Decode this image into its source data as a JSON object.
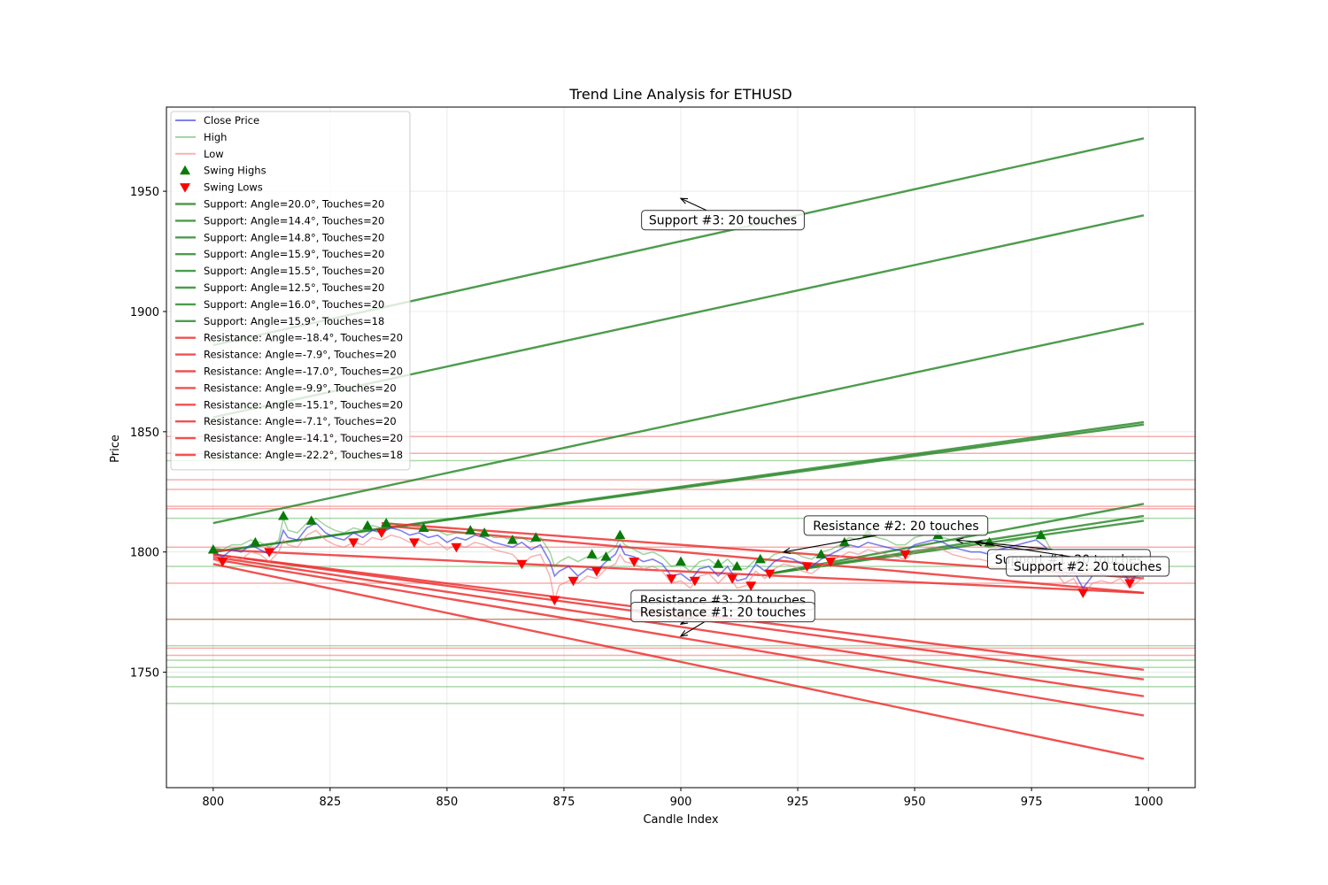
{
  "chart_data": {
    "type": "line",
    "title": "Trend Line Analysis for ETHUSD",
    "xlabel": "Candle Index",
    "ylabel": "Price",
    "xlim": [
      790,
      1010
    ],
    "ylim": [
      1702,
      1985
    ],
    "xticks": [
      800,
      825,
      850,
      875,
      900,
      925,
      950,
      975,
      1000
    ],
    "yticks": [
      1750,
      1800,
      1850,
      1900,
      1950
    ],
    "grid": true,
    "legend_position": "upper-left",
    "colors": {
      "close": "#3b3be0",
      "high": "#2ca02c",
      "low": "#f08080",
      "support": "#2e8b2e",
      "resistance": "#ee3333",
      "swing_high": "#0a7a0a",
      "swing_low": "#ff0000"
    },
    "series": [
      {
        "name": "Close Price",
        "x": [
          800,
          802,
          804,
          806,
          808,
          810,
          812,
          814,
          815,
          816,
          818,
          820,
          822,
          824,
          826,
          828,
          830,
          832,
          834,
          836,
          838,
          840,
          842,
          844,
          846,
          848,
          850,
          852,
          854,
          856,
          858,
          860,
          862,
          864,
          866,
          868,
          870,
          872,
          873,
          874,
          876,
          878,
          880,
          882,
          884,
          886,
          887,
          888,
          890,
          892,
          894,
          896,
          898,
          900,
          902,
          904,
          906,
          908,
          910,
          912,
          914,
          916,
          918,
          920,
          922,
          924,
          926,
          928,
          930,
          932,
          934,
          936,
          938,
          940,
          942,
          944,
          946,
          948,
          950,
          952,
          954,
          956,
          958,
          960,
          962,
          964,
          966,
          968,
          970,
          972,
          974,
          976,
          978,
          980,
          982,
          984,
          986,
          988,
          990,
          992,
          994,
          996,
          998,
          999
        ],
        "values": [
          1800,
          1798,
          1801,
          1800,
          1803,
          1801,
          1799,
          1803,
          1809,
          1806,
          1805,
          1810,
          1812,
          1808,
          1806,
          1805,
          1808,
          1806,
          1809,
          1808,
          1810,
          1809,
          1807,
          1808,
          1806,
          1807,
          1804,
          1806,
          1805,
          1807,
          1806,
          1804,
          1803,
          1802,
          1804,
          1801,
          1803,
          1796,
          1790,
          1792,
          1794,
          1790,
          1793,
          1792,
          1796,
          1799,
          1803,
          1799,
          1798,
          1796,
          1797,
          1795,
          1790,
          1791,
          1788,
          1793,
          1794,
          1790,
          1794,
          1788,
          1789,
          1795,
          1792,
          1796,
          1798,
          1797,
          1795,
          1794,
          1797,
          1799,
          1801,
          1803,
          1802,
          1804,
          1803,
          1802,
          1801,
          1800,
          1803,
          1804,
          1805,
          1804,
          1802,
          1801,
          1800,
          1800,
          1799,
          1801,
          1802,
          1803,
          1804,
          1805,
          1802,
          1795,
          1790,
          1792,
          1785,
          1790,
          1791,
          1790,
          1792,
          1788,
          1791,
          1793
        ]
      },
      {
        "name": "High",
        "x": [
          800,
          802,
          804,
          806,
          808,
          810,
          812,
          814,
          815,
          816,
          818,
          820,
          822,
          824,
          826,
          828,
          830,
          832,
          834,
          836,
          838,
          840,
          842,
          844,
          846,
          848,
          850,
          852,
          854,
          856,
          858,
          860,
          862,
          864,
          866,
          868,
          870,
          872,
          873,
          874,
          876,
          878,
          880,
          882,
          884,
          886,
          887,
          888,
          890,
          892,
          894,
          896,
          898,
          900,
          902,
          904,
          906,
          908,
          910,
          912,
          914,
          916,
          918,
          920,
          922,
          924,
          926,
          928,
          930,
          932,
          934,
          936,
          938,
          940,
          942,
          944,
          946,
          948,
          950,
          952,
          954,
          956,
          958,
          960,
          962,
          964,
          966,
          968,
          970,
          972,
          974,
          976,
          978,
          980,
          982,
          984,
          986,
          988,
          990,
          992,
          994,
          996,
          998,
          999
        ],
        "values": [
          1802,
          1801,
          1803,
          1803,
          1805,
          1804,
          1802,
          1805,
          1814,
          1809,
          1808,
          1812,
          1814,
          1811,
          1809,
          1808,
          1810,
          1809,
          1811,
          1810,
          1812,
          1811,
          1810,
          1810,
          1809,
          1809,
          1807,
          1808,
          1808,
          1809,
          1808,
          1806,
          1806,
          1805,
          1806,
          1804,
          1806,
          1800,
          1794,
          1796,
          1798,
          1796,
          1798,
          1797,
          1799,
          1802,
          1806,
          1803,
          1801,
          1799,
          1800,
          1798,
          1794,
          1795,
          1792,
          1796,
          1797,
          1794,
          1797,
          1793,
          1793,
          1797,
          1796,
          1799,
          1800,
          1800,
          1798,
          1797,
          1800,
          1801,
          1803,
          1806,
          1805,
          1807,
          1806,
          1805,
          1803,
          1803,
          1806,
          1807,
          1807,
          1806,
          1805,
          1804,
          1803,
          1803,
          1802,
          1803,
          1804,
          1805,
          1806,
          1807,
          1805,
          1798,
          1794,
          1795,
          1790,
          1794,
          1794,
          1793,
          1795,
          1791,
          1794,
          1795
        ]
      },
      {
        "name": "Low",
        "x": [
          800,
          802,
          804,
          806,
          808,
          810,
          812,
          814,
          815,
          816,
          818,
          820,
          822,
          824,
          826,
          828,
          830,
          832,
          834,
          836,
          838,
          840,
          842,
          844,
          846,
          848,
          850,
          852,
          854,
          856,
          858,
          860,
          862,
          864,
          866,
          868,
          870,
          872,
          873,
          874,
          876,
          878,
          880,
          882,
          884,
          886,
          887,
          888,
          890,
          892,
          894,
          896,
          898,
          900,
          902,
          904,
          906,
          908,
          910,
          912,
          914,
          916,
          918,
          920,
          922,
          924,
          926,
          928,
          930,
          932,
          934,
          936,
          938,
          940,
          942,
          944,
          946,
          948,
          950,
          952,
          954,
          956,
          958,
          960,
          962,
          964,
          966,
          968,
          970,
          972,
          974,
          976,
          978,
          980,
          982,
          984,
          986,
          988,
          990,
          992,
          994,
          996,
          998,
          999
        ],
        "values": [
          1797,
          1795,
          1798,
          1797,
          1800,
          1799,
          1796,
          1800,
          1805,
          1803,
          1802,
          1807,
          1809,
          1805,
          1803,
          1802,
          1804,
          1803,
          1806,
          1805,
          1807,
          1806,
          1804,
          1805,
          1803,
          1804,
          1801,
          1803,
          1802,
          1804,
          1803,
          1801,
          1800,
          1799,
          1795,
          1798,
          1799,
          1790,
          1780,
          1786,
          1788,
          1787,
          1790,
          1789,
          1793,
          1795,
          1799,
          1796,
          1795,
          1793,
          1794,
          1792,
          1787,
          1788,
          1785,
          1790,
          1791,
          1787,
          1791,
          1785,
          1786,
          1792,
          1789,
          1793,
          1795,
          1794,
          1792,
          1791,
          1794,
          1796,
          1798,
          1800,
          1799,
          1801,
          1800,
          1799,
          1798,
          1797,
          1800,
          1801,
          1802,
          1801,
          1799,
          1798,
          1797,
          1797,
          1796,
          1798,
          1799,
          1800,
          1801,
          1802,
          1799,
          1792,
          1787,
          1789,
          1782,
          1787,
          1788,
          1787,
          1789,
          1785,
          1788,
          1790
        ]
      }
    ],
    "swing_highs": {
      "name": "Swing Highs",
      "x": [
        800,
        809,
        815,
        821,
        833,
        837,
        845,
        855,
        858,
        864,
        869,
        881,
        884,
        887,
        900,
        908,
        912,
        917,
        930,
        935,
        940,
        955,
        966,
        977,
        991
      ],
      "y": [
        1801,
        1804,
        1815,
        1813,
        1811,
        1812,
        1810,
        1809,
        1808,
        1805,
        1806,
        1799,
        1798,
        1807,
        1796,
        1795,
        1794,
        1797,
        1799,
        1804,
        1808,
        1807,
        1804,
        1807,
        1794
      ]
    },
    "swing_lows": {
      "name": "Swing Lows",
      "x": [
        802,
        812,
        830,
        836,
        843,
        852,
        866,
        873,
        877,
        882,
        890,
        898,
        903,
        911,
        915,
        919,
        927,
        932,
        948,
        986,
        996
      ],
      "y": [
        1796,
        1800,
        1804,
        1808,
        1804,
        1802,
        1795,
        1780,
        1788,
        1792,
        1796,
        1789,
        1788,
        1789,
        1786,
        1791,
        1794,
        1796,
        1799,
        1783,
        1787
      ]
    },
    "support_lines": [
      {
        "name": "Support: Angle=20.0°, Touches=20",
        "x": [
          800,
          999
        ],
        "y": [
          1800,
          1853
        ]
      },
      {
        "name": "Support: Angle=14.4°, Touches=20",
        "x": [
          800,
          999
        ],
        "y": [
          1800,
          1854
        ]
      },
      {
        "name": "Support: Angle=14.8°, Touches=20",
        "x": [
          800,
          999
        ],
        "y": [
          1812,
          1895
        ]
      },
      {
        "name": "Support: Angle=15.9°, Touches=20",
        "x": [
          800,
          999
        ],
        "y": [
          1856,
          1940
        ]
      },
      {
        "name": "Support: Angle=15.5°, Touches=20",
        "x": [
          800,
          999
        ],
        "y": [
          1886,
          1972
        ]
      },
      {
        "name": "Support: Angle=12.5°, Touches=20",
        "x": [
          919,
          999
        ],
        "y": [
          1791,
          1813
        ]
      },
      {
        "name": "Support: Angle=16.0°, Touches=20",
        "x": [
          919,
          999
        ],
        "y": [
          1791,
          1815
        ]
      },
      {
        "name": "Support: Angle=15.9°, Touches=18",
        "x": [
          919,
          999
        ],
        "y": [
          1791,
          1820
        ]
      }
    ],
    "resistance_lines": [
      {
        "name": "Resistance: Angle=-18.4°, Touches=20",
        "x": [
          800,
          999
        ],
        "y": [
          1801,
          1783
        ]
      },
      {
        "name": "Resistance: Angle=-7.9°, Touches=20",
        "x": [
          836,
          999
        ],
        "y": [
          1812,
          1789
        ]
      },
      {
        "name": "Resistance: Angle=-17.0°, Touches=20",
        "x": [
          800,
          999
        ],
        "y": [
          1799,
          1751
        ]
      },
      {
        "name": "Resistance: Angle=-9.9°, Touches=20",
        "x": [
          800,
          999
        ],
        "y": [
          1799,
          1747
        ]
      },
      {
        "name": "Resistance: Angle=-15.1°, Touches=20",
        "x": [
          800,
          999
        ],
        "y": [
          1798,
          1740
        ]
      },
      {
        "name": "Resistance: Angle=-7.1°, Touches=20",
        "x": [
          800,
          999
        ],
        "y": [
          1797,
          1732
        ]
      },
      {
        "name": "Resistance: Angle=-14.1°, Touches=20",
        "x": [
          800,
          999
        ],
        "y": [
          1795,
          1714
        ]
      },
      {
        "name": "Resistance: Angle=-22.2°, Touches=18",
        "x": [
          836,
          999
        ],
        "y": [
          1811,
          1783
        ]
      }
    ],
    "horizontal_support_levels": [
      1838,
      1814,
      1794,
      1772,
      1761,
      1755,
      1752,
      1748,
      1744,
      1737
    ],
    "horizontal_resistance_levels": [
      1848,
      1841,
      1830,
      1826,
      1819,
      1818,
      1802,
      1787,
      1772,
      1760,
      1757
    ],
    "legend": [
      "Close Price",
      "High",
      "Low",
      "Swing Highs",
      "Swing Lows",
      "Support: Angle=20.0°, Touches=20",
      "Support: Angle=14.4°, Touches=20",
      "Support: Angle=14.8°, Touches=20",
      "Support: Angle=15.9°, Touches=20",
      "Support: Angle=15.5°, Touches=20",
      "Support: Angle=12.5°, Touches=20",
      "Support: Angle=16.0°, Touches=20",
      "Support: Angle=15.9°, Touches=18",
      "Resistance: Angle=-18.4°, Touches=20",
      "Resistance: Angle=-7.9°, Touches=20",
      "Resistance: Angle=-17.0°, Touches=20",
      "Resistance: Angle=-9.9°, Touches=20",
      "Resistance: Angle=-15.1°, Touches=20",
      "Resistance: Angle=-7.1°, Touches=20",
      "Resistance: Angle=-14.1°, Touches=20",
      "Resistance: Angle=-22.2°, Touches=18"
    ],
    "annotations": [
      {
        "text": "Support #3: 20 touches",
        "x": 900,
        "y": 1947,
        "text_x": 909,
        "text_y": 1938
      },
      {
        "text": "Resistance #2: 20 touches",
        "x": 922,
        "y": 1800,
        "text_x": 946,
        "text_y": 1811
      },
      {
        "text": "Support #1: 20 touches",
        "x": 959,
        "y": 1805,
        "text_x": 983,
        "text_y": 1797
      },
      {
        "text": "Support #2: 20 touches",
        "x": 963,
        "y": 1804,
        "text_x": 987,
        "text_y": 1794
      },
      {
        "text": "Resistance #3: 20 touches",
        "x": 900,
        "y": 1770,
        "text_x": 909,
        "text_y": 1780
      },
      {
        "text": "Resistance #1: 20 touches",
        "x": 900,
        "y": 1765,
        "text_x": 909,
        "text_y": 1775
      }
    ]
  }
}
